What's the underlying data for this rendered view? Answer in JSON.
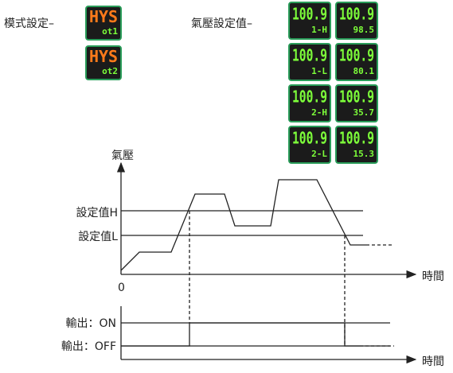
{
  "mode_label": "模式設定–",
  "mode_displays": [
    {
      "top": "HYS",
      "bottom": "ot1"
    },
    {
      "top": "HYS",
      "bottom": "ot2"
    }
  ],
  "pressure_label": "氣壓設定值–",
  "pressure_displays": [
    {
      "top": "100.9",
      "bottom": "1-H"
    },
    {
      "top": "100.9",
      "bottom": "98.5"
    },
    {
      "top": "100.9",
      "bottom": "1-L"
    },
    {
      "top": "100.9",
      "bottom": "80.1"
    },
    {
      "top": "100.9",
      "bottom": "2-H"
    },
    {
      "top": "100.9",
      "bottom": "35.7"
    },
    {
      "top": "100.9",
      "bottom": "2-L"
    },
    {
      "top": "100.9",
      "bottom": "15.3"
    }
  ],
  "graph": {
    "y_label": "氣壓",
    "set_h": "設定值H",
    "set_l": "設定值L",
    "origin": "0",
    "x_label": "時間",
    "out_on": "輸出：ON",
    "out_off": "輸出：OFF",
    "x_label_2": "時間"
  }
}
